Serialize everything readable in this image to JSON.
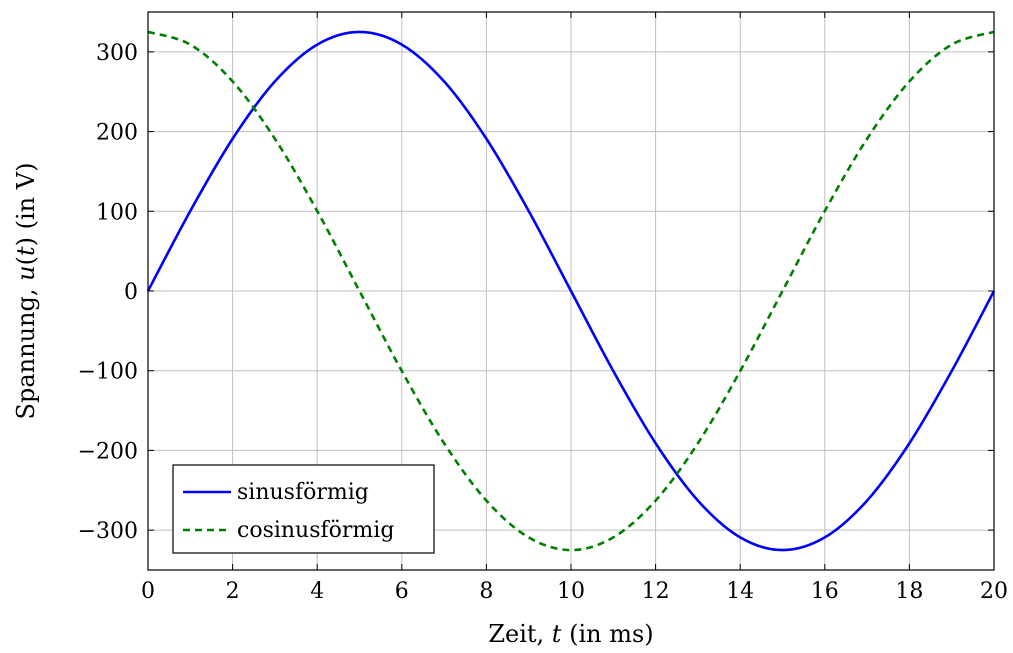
{
  "chart_data": {
    "type": "line",
    "title": "",
    "xlabel": {
      "prefix": "Zeit, ",
      "var": "t",
      "suffix": " (in ms)"
    },
    "ylabel": {
      "prefix": "Spannung, ",
      "var": "u",
      "paren": "(",
      "arg": "t",
      "paren_close": ")",
      "suffix": " (in V)"
    },
    "xlim": [
      0,
      20
    ],
    "ylim": [
      -350,
      350
    ],
    "xticks": [
      0,
      2,
      4,
      6,
      8,
      10,
      12,
      14,
      16,
      18,
      20
    ],
    "yticks": [
      -300,
      -200,
      -100,
      0,
      100,
      200,
      300
    ],
    "ytick_labels": [
      "−300",
      "−200",
      "−100",
      "0",
      "100",
      "200",
      "300"
    ],
    "grid": true,
    "legend_position": "bottom-left",
    "series": [
      {
        "name": "sinusförmig",
        "color": "#0000ff",
        "style": "solid",
        "x": [
          0,
          1,
          2,
          3,
          4,
          5,
          6,
          7,
          8,
          9,
          10,
          11,
          12,
          13,
          14,
          15,
          16,
          17,
          18,
          19,
          20
        ],
        "y": [
          0,
          100.4,
          191.0,
          262.9,
          309.1,
          325.0,
          309.1,
          262.9,
          191.0,
          100.4,
          0,
          -100.4,
          -191.0,
          -262.9,
          -309.1,
          -325.0,
          -309.1,
          -262.9,
          -191.0,
          -100.4,
          0
        ]
      },
      {
        "name": "cosinusförmig",
        "color": "#008000",
        "style": "dashed",
        "x": [
          0,
          1,
          2,
          3,
          4,
          5,
          6,
          7,
          8,
          9,
          10,
          11,
          12,
          13,
          14,
          15,
          16,
          17,
          18,
          19,
          20
        ],
        "y": [
          325.0,
          309.1,
          262.9,
          191.0,
          100.4,
          0,
          -100.4,
          -191.0,
          -262.9,
          -309.1,
          -325.0,
          -309.1,
          -262.9,
          -191.0,
          -100.4,
          0,
          100.4,
          191.0,
          262.9,
          309.1,
          325.0
        ]
      }
    ]
  }
}
